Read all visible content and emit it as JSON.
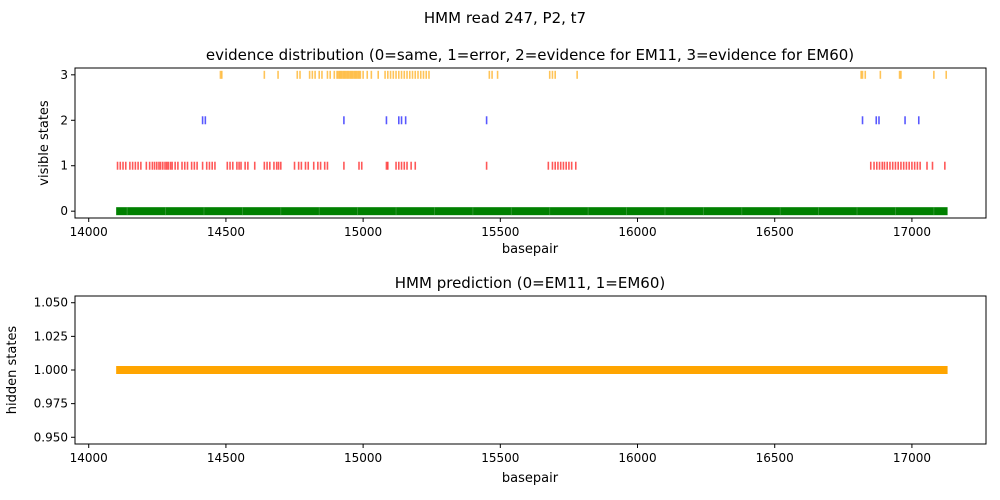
{
  "figure": {
    "suptitle": "HMM read 247, P2, t7"
  },
  "chart_data": [
    {
      "type": "scatter",
      "title": "evidence distribution (0=same, 1=error, 2=evidence for EM11, 3=evidence for EM60)",
      "xlabel": "basepair",
      "ylabel": "visible states",
      "xlim": [
        13950,
        17270
      ],
      "ylim": [
        -0.15,
        3.15
      ],
      "xticks": [
        14000,
        14500,
        15000,
        15500,
        16000,
        16500,
        17000
      ],
      "yticks": [
        0,
        1,
        2,
        3
      ],
      "x_range": [
        14100,
        17130
      ],
      "grid": false,
      "series": [
        {
          "y": 0,
          "color": "#008000",
          "dense_span": [
            14100,
            17130
          ]
        },
        {
          "y": 1,
          "color": "#ff0000",
          "x": [
            14105,
            14115,
            14125,
            14135,
            14150,
            14160,
            14170,
            14180,
            14190,
            14210,
            14222,
            14232,
            14240,
            14248,
            14256,
            14262,
            14270,
            14278,
            14284,
            14290,
            14298,
            14304,
            14315,
            14325,
            14340,
            14350,
            14360,
            14375,
            14385,
            14395,
            14415,
            14430,
            14440,
            14450,
            14460,
            14505,
            14515,
            14525,
            14540,
            14548,
            14555,
            14570,
            14580,
            14605,
            14640,
            14650,
            14660,
            14675,
            14685,
            14692,
            14700,
            14750,
            14765,
            14775,
            14790,
            14800,
            14820,
            14835,
            14845,
            14860,
            14870,
            14930,
            14985,
            14995,
            15085,
            15090,
            15120,
            15130,
            15140,
            15150,
            15160,
            15175,
            15190,
            15450,
            15675,
            15690,
            15700,
            15710,
            15720,
            15730,
            15740,
            15750,
            15760,
            15775,
            16850,
            16862,
            16872,
            16882,
            16892,
            16900,
            16910,
            16920,
            16930,
            16940,
            16950,
            16960,
            16970,
            16980,
            16990,
            17000,
            17010,
            17020,
            17030,
            17055,
            17075,
            17120
          ]
        },
        {
          "y": 2,
          "color": "#0000ff",
          "x": [
            14415,
            14425,
            14930,
            15085,
            15130,
            15140,
            15155,
            15450,
            16820,
            16870,
            16880,
            16975,
            17025
          ]
        },
        {
          "y": 3,
          "color": "#ffa500",
          "x": [
            14480,
            14485,
            14640,
            14690,
            14760,
            14770,
            14805,
            14815,
            14825,
            14840,
            14850,
            14870,
            14880,
            14895,
            14905,
            14910,
            14915,
            14920,
            14925,
            14930,
            14935,
            14940,
            14945,
            14950,
            14955,
            14960,
            14965,
            14970,
            14975,
            14980,
            14985,
            14990,
            15000,
            15015,
            15030,
            15055,
            15080,
            15090,
            15100,
            15110,
            15120,
            15130,
            15140,
            15150,
            15160,
            15170,
            15180,
            15190,
            15200,
            15210,
            15220,
            15230,
            15240,
            15460,
            15470,
            15490,
            15680,
            15690,
            15700,
            15780,
            16815,
            16820,
            16830,
            16885,
            16955,
            16960,
            17080,
            17125
          ]
        }
      ]
    },
    {
      "type": "line",
      "title": "HMM prediction (0=EM11, 1=EM60)",
      "xlabel": "basepair",
      "ylabel": "hidden states",
      "xlim": [
        13950,
        17270
      ],
      "ylim": [
        0.945,
        1.055
      ],
      "xticks": [
        14000,
        14500,
        15000,
        15500,
        16000,
        16500,
        17000
      ],
      "yticks": [
        0.95,
        0.975,
        1.0,
        1.025,
        1.05
      ],
      "ytick_labels": [
        "0.950",
        "0.975",
        "1.000",
        "1.025",
        "1.050"
      ],
      "grid": false,
      "series": [
        {
          "x": [
            14100,
            17130
          ],
          "y": [
            1.0,
            1.0
          ],
          "color": "#ffa500"
        }
      ]
    }
  ]
}
